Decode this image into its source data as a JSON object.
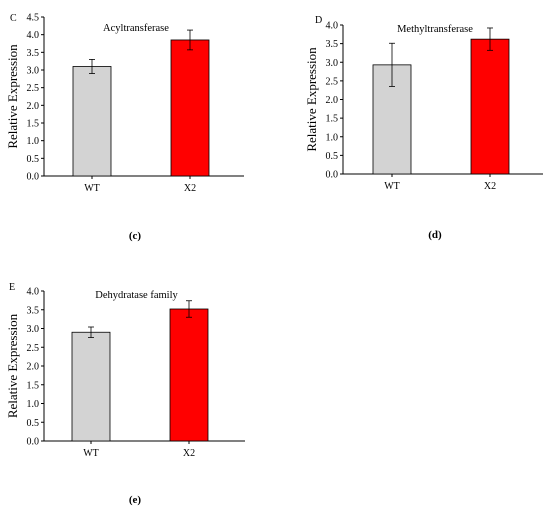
{
  "chart_data": [
    {
      "type": "bar",
      "panel_letter": "C",
      "caption": "(c)",
      "title": "Acyltransferase",
      "ylabel": "Relative Expression",
      "xlabel": "",
      "categories": [
        "WT",
        "X2"
      ],
      "values": [
        3.1,
        3.85
      ],
      "errors": [
        0.2,
        0.28
      ],
      "colors": [
        "#d3d3d3",
        "#ff0000"
      ],
      "ylim": [
        0,
        4.5
      ],
      "yticks": [
        "0.0",
        "0.5",
        "1.0",
        "1.5",
        "2.0",
        "2.5",
        "3.0",
        "3.5",
        "4.0",
        "4.5"
      ],
      "grid": false,
      "legend": "none"
    },
    {
      "type": "bar",
      "panel_letter": "D",
      "caption": "(d)",
      "title": "Methyltransferase",
      "ylabel": "Relative Expression",
      "xlabel": "",
      "categories": [
        "WT",
        "X2"
      ],
      "values": [
        2.93,
        3.62
      ],
      "errors": [
        0.58,
        0.3
      ],
      "colors": [
        "#d3d3d3",
        "#ff0000"
      ],
      "ylim": [
        0,
        4.0
      ],
      "yticks": [
        "0.0",
        "0.5",
        "1.0",
        "1.5",
        "2.0",
        "2.5",
        "3.0",
        "3.5",
        "4.0"
      ],
      "grid": false,
      "legend": "none"
    },
    {
      "type": "bar",
      "panel_letter": "E",
      "caption": "(e)",
      "title": "Dehydratase family",
      "ylabel": "Relative Expression",
      "xlabel": "",
      "categories": [
        "WT",
        "X2"
      ],
      "values": [
        2.9,
        3.52
      ],
      "errors": [
        0.14,
        0.22
      ],
      "colors": [
        "#d3d3d3",
        "#ff0000"
      ],
      "ylim": [
        0,
        4.0
      ],
      "yticks": [
        "0.0",
        "0.5",
        "1.0",
        "1.5",
        "2.0",
        "2.5",
        "3.0",
        "3.5",
        "4.0"
      ],
      "grid": false,
      "legend": "none"
    }
  ]
}
